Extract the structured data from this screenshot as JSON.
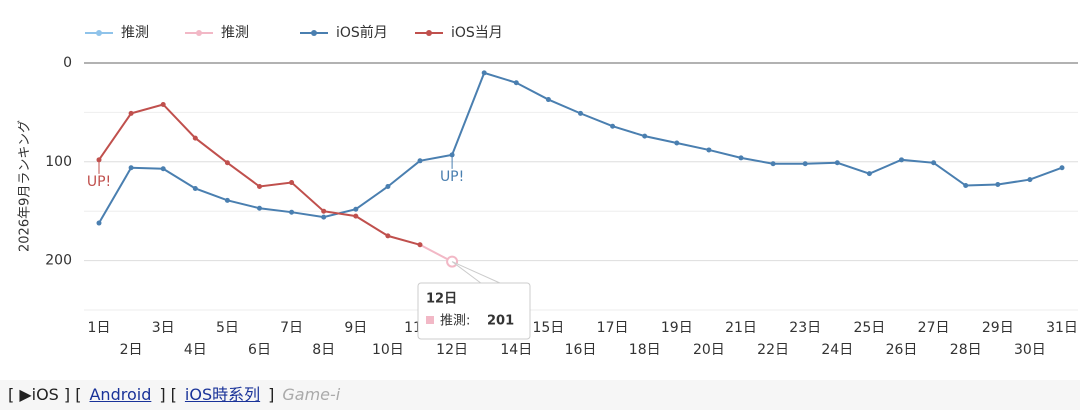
{
  "chart_data": {
    "type": "line",
    "y_label": "2026年9月ランキング",
    "categories": [
      "1日",
      "2日",
      "3日",
      "4日",
      "5日",
      "6日",
      "7日",
      "8日",
      "9日",
      "10日",
      "11日",
      "12日",
      "13日",
      "14日",
      "15日",
      "16日",
      "17日",
      "18日",
      "19日",
      "20日",
      "21日",
      "22日",
      "23日",
      "24日",
      "25日",
      "26日",
      "27日",
      "28日",
      "29日",
      "30日",
      "31日"
    ],
    "series": [
      {
        "name": "推測",
        "color": "#8fc3ea",
        "values": [
          null,
          null,
          null,
          null,
          null,
          null,
          null,
          null,
          null,
          null,
          null,
          null,
          null,
          null,
          null,
          null,
          null,
          null,
          null,
          null,
          null,
          null,
          null,
          null,
          null,
          null,
          null,
          null,
          null,
          null,
          null
        ]
      },
      {
        "name": "推測",
        "color": "#f2b8c6",
        "values": [
          null,
          null,
          null,
          null,
          null,
          null,
          null,
          null,
          null,
          null,
          184,
          201,
          null,
          null,
          null,
          null,
          null,
          null,
          null,
          null,
          null,
          null,
          null,
          null,
          null,
          null,
          null,
          null,
          null,
          null,
          null
        ]
      },
      {
        "name": "iOS前月",
        "color": "#4a7fb0",
        "values": [
          162,
          106,
          107,
          127,
          139,
          147,
          151,
          156,
          148,
          125,
          99,
          93,
          10,
          20,
          37,
          51,
          64,
          74,
          81,
          88,
          96,
          102,
          102,
          101,
          112,
          98,
          101,
          124,
          123,
          118,
          106
        ]
      },
      {
        "name": "iOS当月",
        "color": "#c0504d",
        "values": [
          98,
          51,
          42,
          76,
          101,
          125,
          121,
          150,
          155,
          175,
          184,
          null,
          null,
          null,
          null,
          null,
          null,
          null,
          null,
          null,
          null,
          null,
          null,
          null,
          null,
          null,
          null,
          null,
          null,
          null,
          null
        ]
      }
    ],
    "ylim": [
      0,
      250
    ],
    "y_reversed": true,
    "yticks": [
      0,
      100,
      200
    ],
    "minor_grid": [
      50,
      150,
      250
    ],
    "grid": true,
    "legend": "top-left",
    "annotations": [
      {
        "text": "UP!",
        "series": 3,
        "index": 0
      },
      {
        "text": "UP!",
        "series": 2,
        "index": 11
      }
    ],
    "tooltip": {
      "series": 1,
      "index": 11,
      "title": "12日",
      "label": "推測:",
      "value": 201
    }
  },
  "nav": [
    {
      "text": "[ ▶iOS ] [",
      "link": false
    },
    {
      "text": "Android",
      "link": true
    },
    {
      "text": "] [",
      "link": false
    },
    {
      "text": "iOS時系列",
      "link": true
    },
    {
      "text": "]",
      "link": false
    },
    {
      "text": "Game-i",
      "link": false,
      "muted": true
    }
  ]
}
